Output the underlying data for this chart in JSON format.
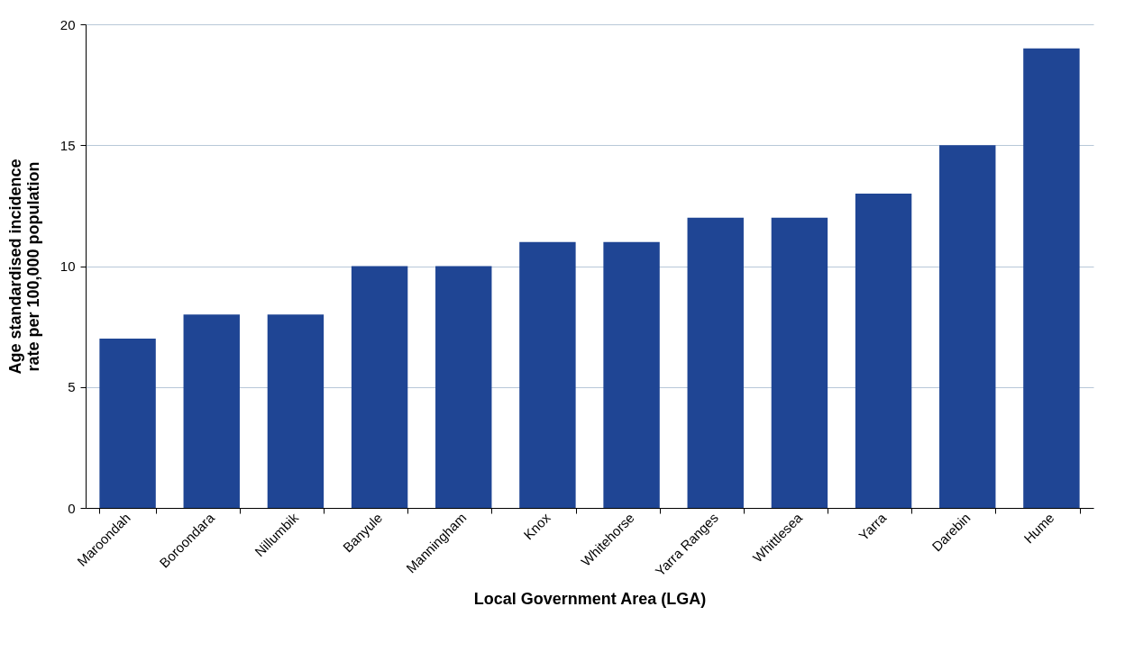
{
  "chart_data": {
    "type": "bar",
    "xlabel": "Local Government Area (LGA)",
    "ylabel": "Age standardised incidence rate per 100,000 population",
    "categories": [
      "Maroondah",
      "Boroondara",
      "Nillumbik",
      "Banyule",
      "Manningham",
      "Knox",
      "Whitehorse",
      "Yarra Ranges",
      "Whittlesea",
      "Yarra",
      "Darebin",
      "Hume"
    ],
    "values": [
      7,
      8,
      8,
      10,
      10,
      11,
      11,
      12,
      12,
      13,
      15,
      19
    ],
    "color": "#1f4594",
    "ylim": [
      0,
      20
    ],
    "yticks": [
      0,
      5,
      10,
      15,
      20
    ],
    "grid": "y"
  }
}
